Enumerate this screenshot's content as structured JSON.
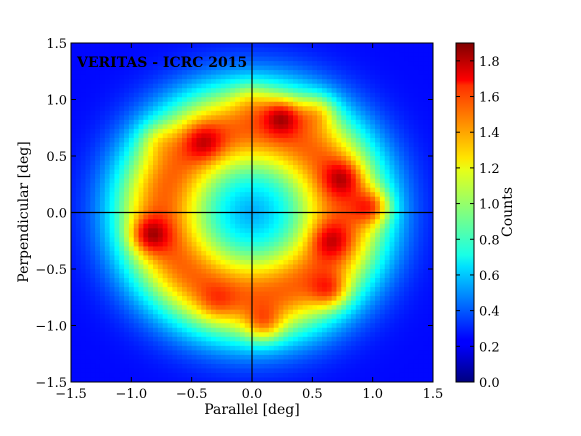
{
  "chart_data": {
    "type": "heatmap",
    "title": "VERITAS - ICRC 2015",
    "xlabel": "Parallel [deg]",
    "ylabel": "Perpendicular [deg]",
    "xlim": [
      -1.5,
      1.5
    ],
    "ylim": [
      -1.5,
      1.5
    ],
    "x_ticks": [
      "−1.5",
      "−1.0",
      "−0.5",
      "0.0",
      "0.5",
      "1.0",
      "1.5"
    ],
    "y_ticks": [
      "1.5",
      "1.0",
      "0.5",
      "0.0",
      "−0.5",
      "−1.0",
      "−1.5"
    ],
    "colorbar": {
      "label": "Counts",
      "range": [
        0.0,
        1.9
      ],
      "ticks": [
        "1.8",
        "1.6",
        "1.4",
        "1.2",
        "1.0",
        "0.8",
        "0.6",
        "0.4",
        "0.2",
        "0.0"
      ],
      "colormap": "jet"
    },
    "crosshair": {
      "x": 0.0,
      "y": 0.0
    },
    "ring": {
      "center": [
        0.0,
        0.0
      ],
      "radius_deg": 0.75,
      "baseline_counts": 1.45
    },
    "hotspots": [
      {
        "x": 0.25,
        "y": 0.85,
        "counts": 1.9
      },
      {
        "x": 0.55,
        "y": 0.9,
        "counts": 1.75
      },
      {
        "x": -0.4,
        "y": 0.62,
        "counts": 1.75
      },
      {
        "x": -0.8,
        "y": 0.65,
        "counts": 1.6
      },
      {
        "x": 0.75,
        "y": 0.3,
        "counts": 1.8
      },
      {
        "x": 1.0,
        "y": 0.05,
        "counts": 1.9
      },
      {
        "x": -0.85,
        "y": -0.2,
        "counts": 1.9
      },
      {
        "x": 0.65,
        "y": -0.25,
        "counts": 1.75
      },
      {
        "x": 0.65,
        "y": -0.7,
        "counts": 1.8
      },
      {
        "x": 0.1,
        "y": -1.0,
        "counts": 1.8
      },
      {
        "x": -0.3,
        "y": -0.8,
        "counts": 1.6
      },
      {
        "x": 0.0,
        "y": 1.0,
        "counts": 1.6
      }
    ]
  }
}
